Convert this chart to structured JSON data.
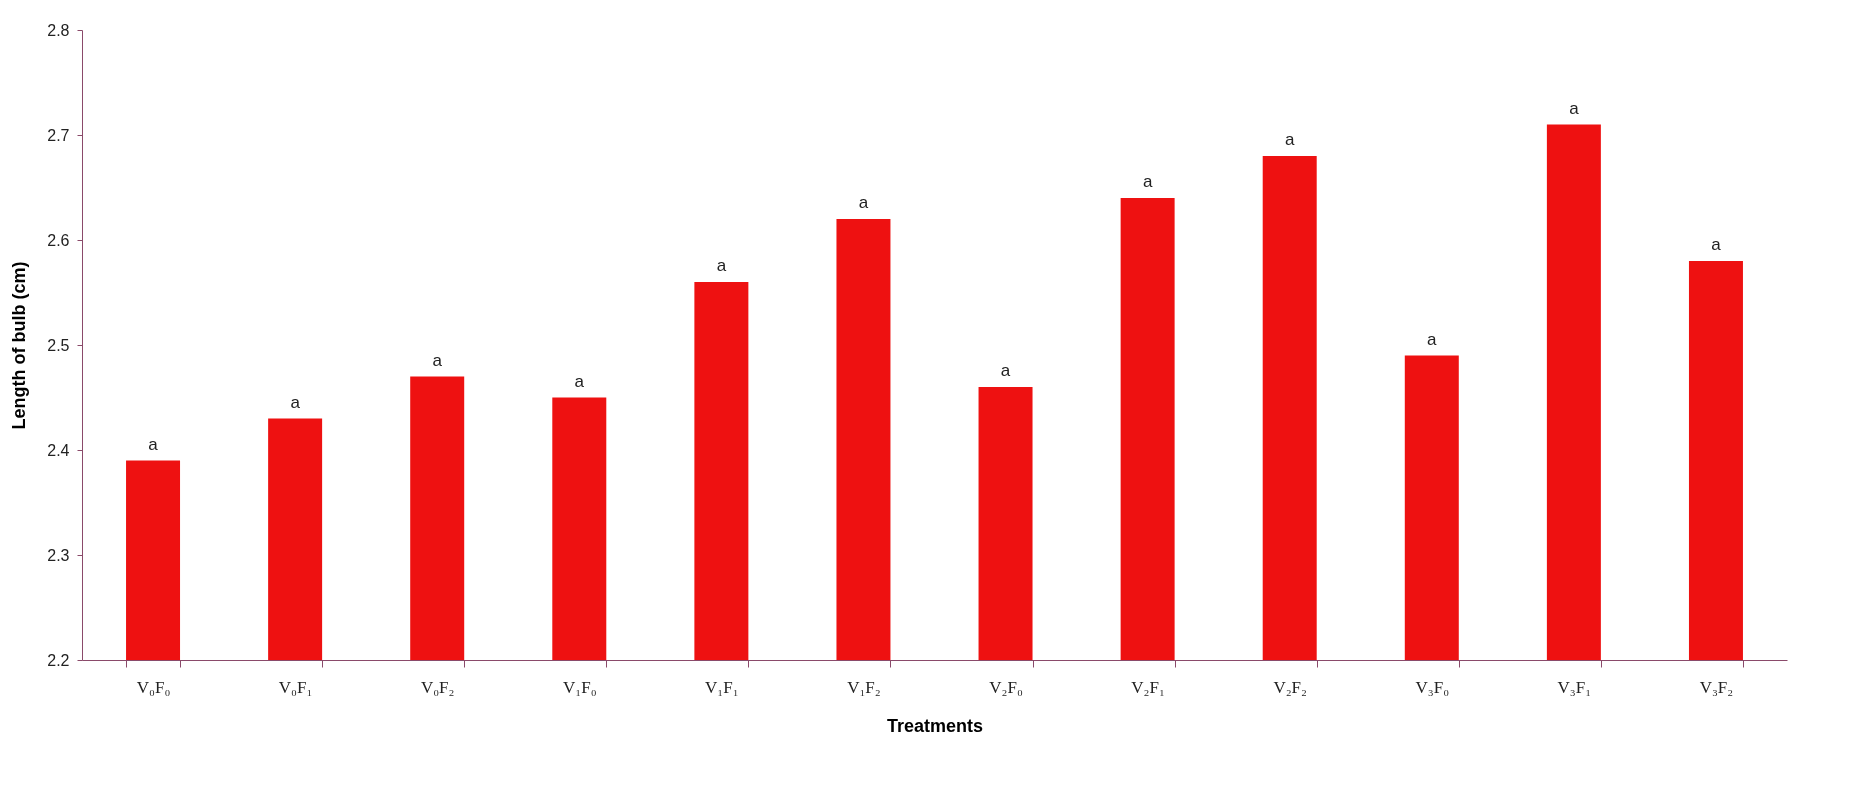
{
  "chart_data": {
    "type": "bar",
    "xlabel": "Treatments",
    "ylabel": "Length of bulb (cm)",
    "categories": [
      "V₀F₀",
      "V₀F₁",
      "V₀F₂",
      "V₁F₀",
      "V₁F₁",
      "V₁F₂",
      "V₂F₀",
      "V₂F₁",
      "V₂F₂",
      "V₃F₀",
      "V₃F₁",
      "V₃F₂"
    ],
    "values": [
      2.39,
      2.43,
      2.47,
      2.45,
      2.56,
      2.62,
      2.46,
      2.64,
      2.68,
      2.49,
      2.71,
      2.58
    ],
    "color": "#ee1111",
    "ylim": [
      2.2,
      2.8
    ],
    "yticks": [
      2.2,
      2.3,
      2.4,
      2.5,
      2.6,
      2.7,
      2.8
    ],
    "grid": false,
    "annotations": [
      {
        "text": "a",
        "x": "V₀F₀",
        "y": 2.39
      },
      {
        "text": "a",
        "x": "V₀F₁",
        "y": 2.43
      },
      {
        "text": "a",
        "x": "V₀F₂",
        "y": 2.47
      },
      {
        "text": "a",
        "x": "V₁F₀",
        "y": 2.45
      },
      {
        "text": "a",
        "x": "V₁F₁",
        "y": 2.56
      },
      {
        "text": "a",
        "x": "V₁F₂",
        "y": 2.62
      },
      {
        "text": "a",
        "x": "V₂F₀",
        "y": 2.46
      },
      {
        "text": "a",
        "x": "V₂F₁",
        "y": 2.64
      },
      {
        "text": "a",
        "x": "V₂F₂",
        "y": 2.68
      },
      {
        "text": "a",
        "x": "V₃F₀",
        "y": 2.49
      },
      {
        "text": "a",
        "x": "V₃F₁",
        "y": 2.71
      },
      {
        "text": "a",
        "x": "V₃F₂",
        "y": 2.58
      }
    ]
  }
}
